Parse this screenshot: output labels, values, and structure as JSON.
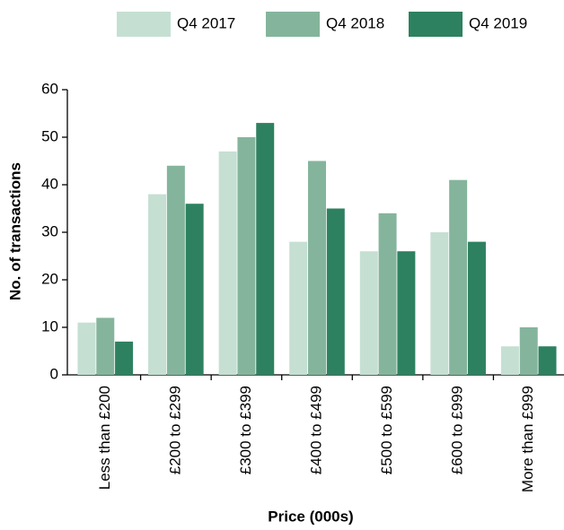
{
  "chart_data": {
    "type": "bar",
    "x_label": "Price (000s)",
    "y_label": "No. of transactions",
    "categories": [
      "Less than £200",
      "£200 to £299",
      "£300 to £399",
      "£400 to £499",
      "£500 to £599",
      "£600 to £999",
      "More than £999"
    ],
    "series": [
      {
        "name": "Q4 2017",
        "color": "#c5dfd3",
        "values": [
          11,
          38,
          47,
          28,
          26,
          30,
          6
        ]
      },
      {
        "name": "Q4 2018",
        "color": "#84b59c",
        "values": [
          12,
          44,
          50,
          45,
          34,
          41,
          10
        ]
      },
      {
        "name": "Q4 2019",
        "color": "#2e8160",
        "values": [
          7,
          36,
          53,
          35,
          26,
          28,
          6
        ]
      }
    ],
    "ylim": [
      0,
      60
    ],
    "yticks": [
      0,
      10,
      20,
      30,
      40,
      50,
      60
    ],
    "grid": false,
    "legend": "top"
  }
}
